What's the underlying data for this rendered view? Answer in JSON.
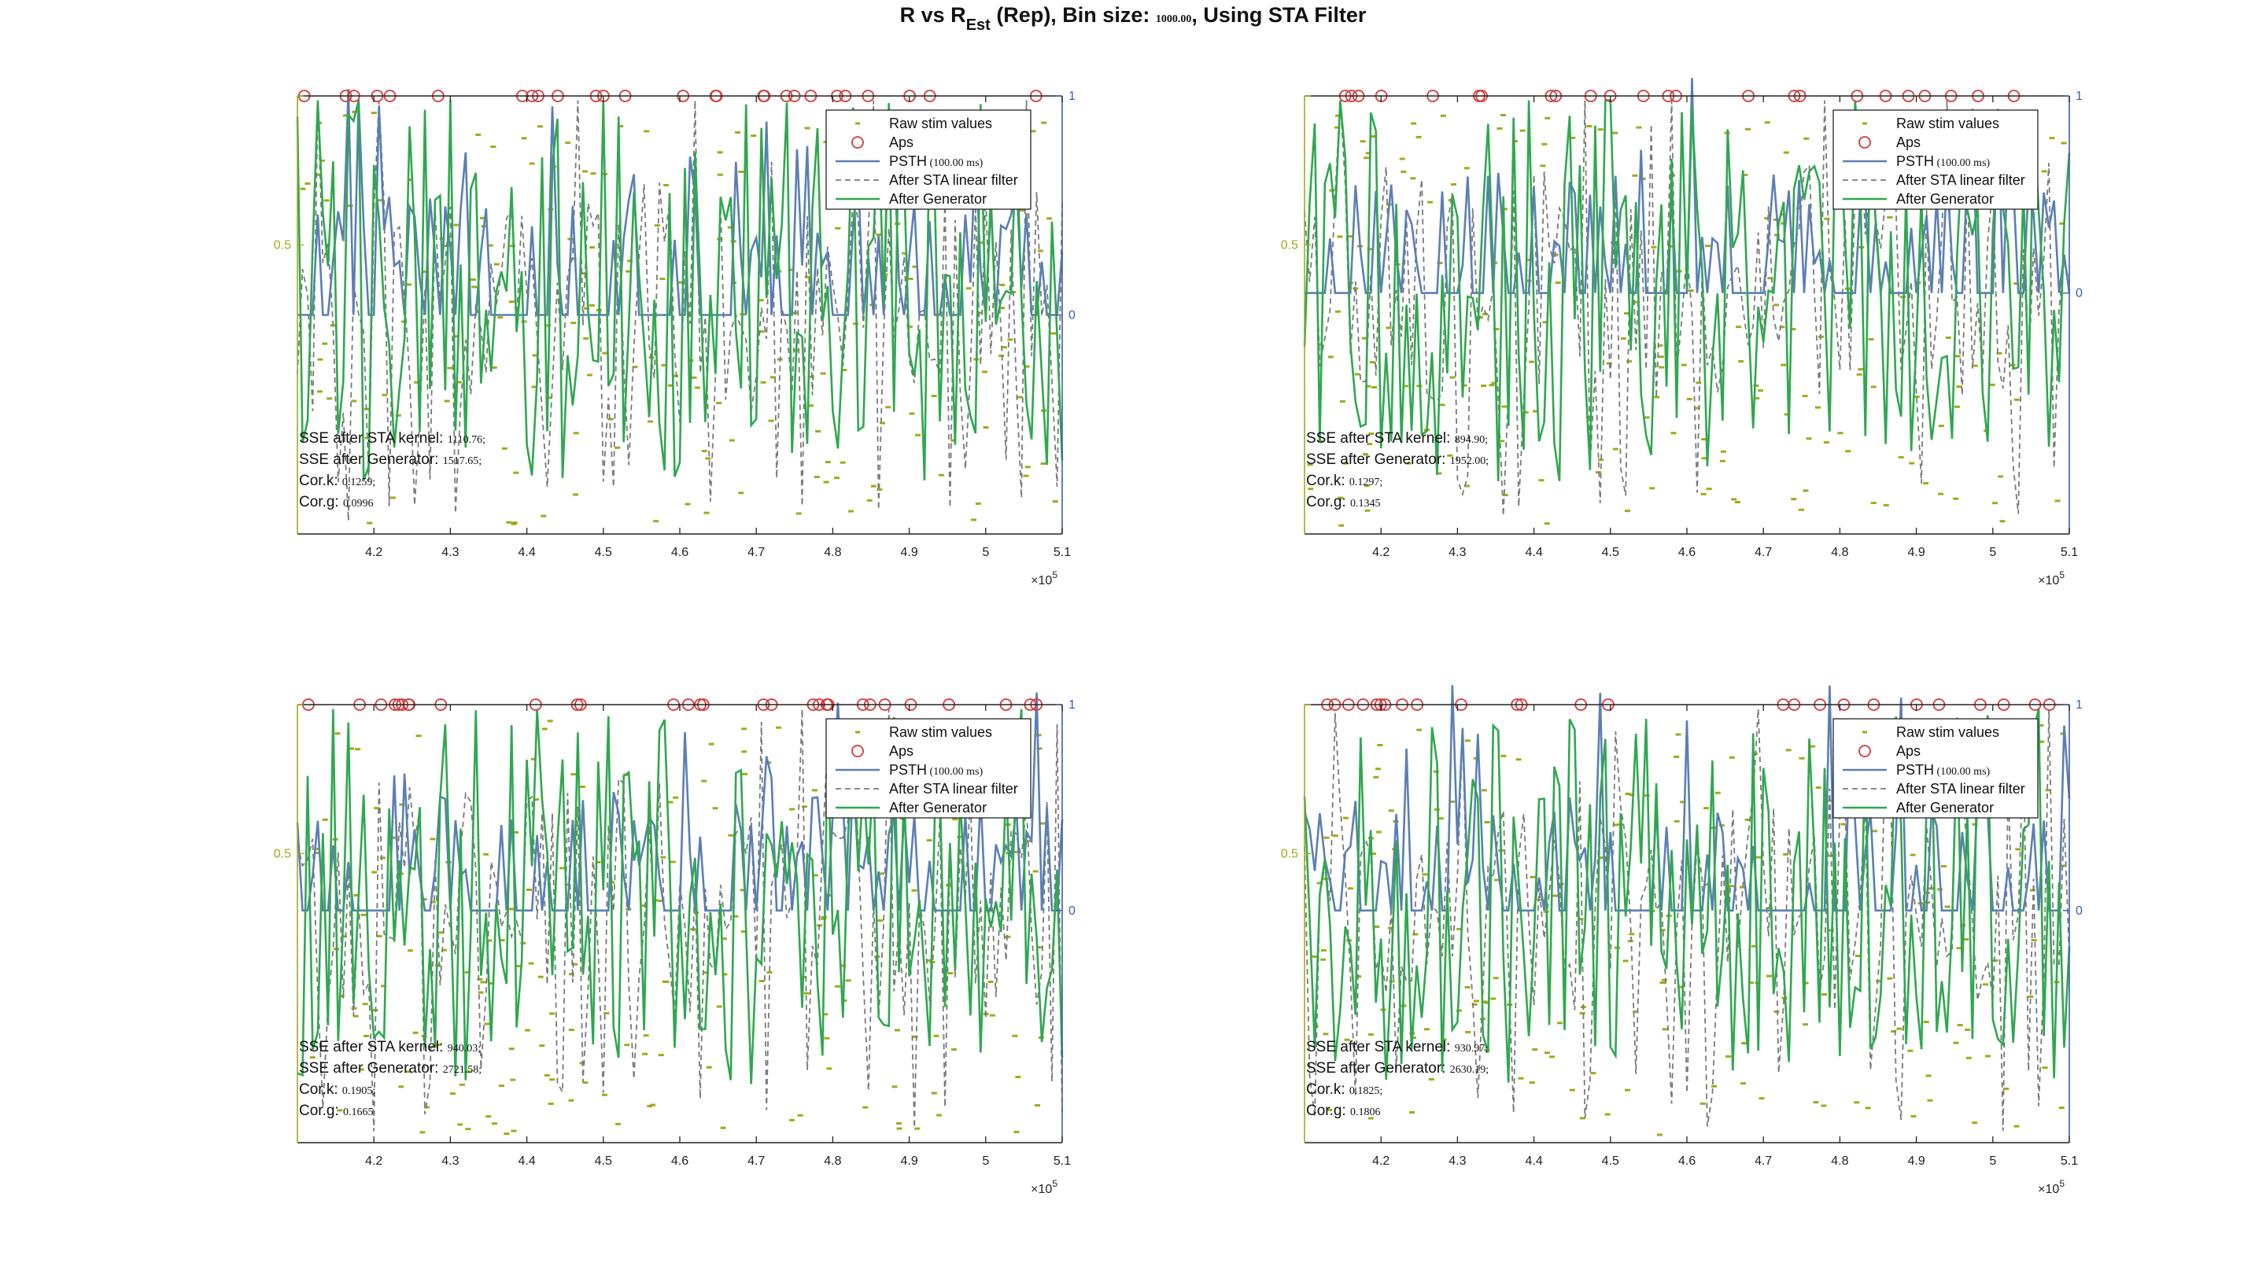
{
  "figure_title": {
    "main": "R vs R",
    "subscript": "Est",
    "rest_a": " (Rep), Bin size: ",
    "bin": "1000.00",
    "rest_b": ", Using STA Filter"
  },
  "colors": {
    "stim": "#a4a81a",
    "aps": "#d23b3b",
    "psth": "#5b7fb4",
    "sta": "#7a7a7a",
    "gen": "#2fa84f",
    "left_axis": "#a4a81a",
    "right_axis": "#3b5fa8"
  },
  "legend": {
    "stim": "Raw stim values",
    "aps": "Aps",
    "psth": "PSTH",
    "psth_unit": " (100.00 ms)",
    "sta": "After STA linear filter",
    "gen": "After Generator"
  },
  "stat_labels": {
    "sse_sta": "SSE after STA kernel",
    "sse_gen": "SSE after Generator",
    "cor_k": "Cor.k",
    "cor_g": "Cor.g"
  },
  "x_tick_labels": [
    "4.2",
    "4.3",
    "4.4",
    "4.5",
    "4.6",
    "4.7",
    "4.8",
    "4.9",
    "5",
    "5.1"
  ],
  "x_exponent_base": "×10",
  "x_exponent": "5",
  "left_ticks": [
    "0.5",
    "1"
  ],
  "right_ticks": [
    "0",
    "1"
  ],
  "chart_data": [
    {
      "type": "line",
      "panel": "top-left",
      "stats": {
        "sse_sta": "1110.76",
        "sse_gen": "1517.65",
        "cor_k": "0.1259",
        "cor_g": "0.0996"
      },
      "xlim": [
        410000,
        510000
      ],
      "seed": 11,
      "right_zero_frac": 0.5
    },
    {
      "type": "line",
      "panel": "top-right",
      "stats": {
        "sse_sta": "894.90",
        "sse_gen": "1952.00",
        "cor_k": "0.1297",
        "cor_g": "0.1345"
      },
      "xlim": [
        410000,
        510000
      ],
      "seed": 23,
      "right_zero_frac": 0.55
    },
    {
      "type": "line",
      "panel": "bottom-left",
      "stats": {
        "sse_sta": "940.03",
        "sse_gen": "2721.58",
        "cor_k": "0.1905",
        "cor_g": "0.1665"
      },
      "xlim": [
        410000,
        510000
      ],
      "seed": 37,
      "right_zero_frac": 0.53
    },
    {
      "type": "line",
      "panel": "bottom-right",
      "stats": {
        "sse_sta": "930.97",
        "sse_gen": "2630.19",
        "cor_k": "0.1825",
        "cor_g": "0.1806"
      },
      "xlim": [
        410000,
        510000
      ],
      "seed": 53,
      "right_zero_frac": 0.53
    }
  ]
}
